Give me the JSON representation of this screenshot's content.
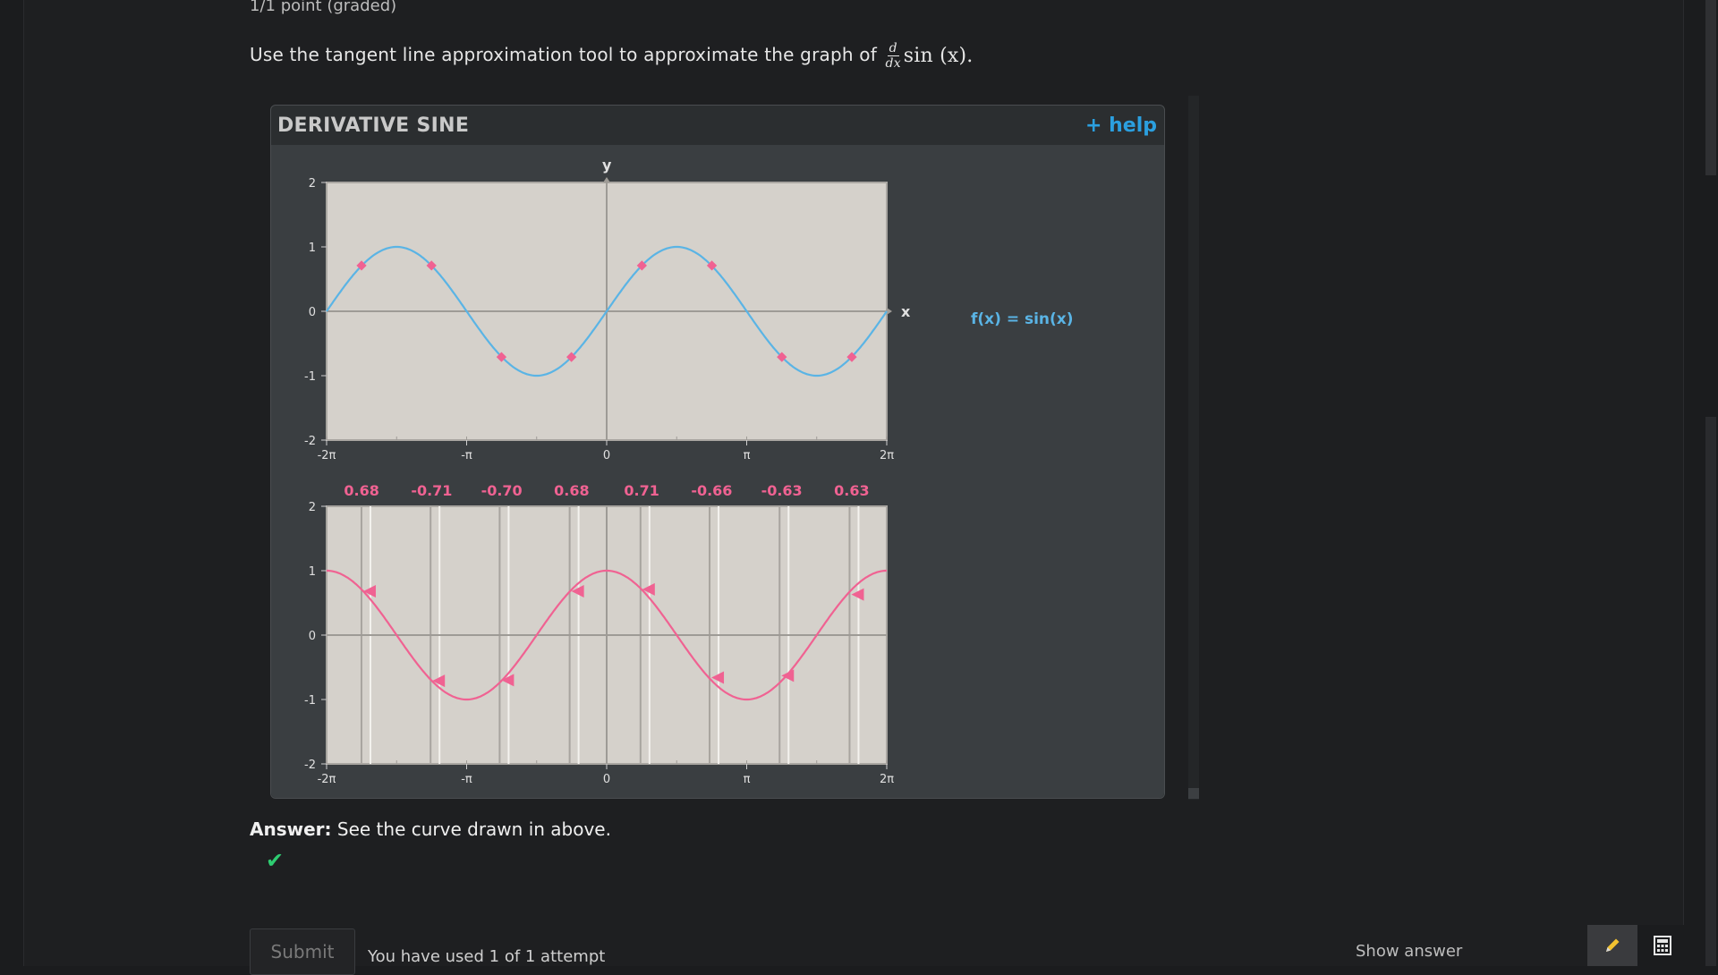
{
  "problem": {
    "points": "1/1 point (graded)",
    "prompt": "Use the tangent line approximation tool to approximate the graph of",
    "math_num": "d",
    "math_den": "dx",
    "math_func": "sin (x)",
    "math_period": "."
  },
  "widget": {
    "title": "DERIVATIVE SINE",
    "help": "+ help",
    "function_label": "f(x) = sin(x)",
    "axis_x": "x",
    "axis_y": "y"
  },
  "chart_data": [
    {
      "type": "line",
      "title": "",
      "xlabel": "x",
      "ylabel": "y",
      "xlim": [
        -6.2832,
        6.2832
      ],
      "ylim": [
        -2,
        2
      ],
      "x_tick_labels": [
        "-2π",
        "-π",
        "0",
        "π",
        "2π"
      ],
      "y_tick_labels": [
        "2",
        "1",
        "0",
        "-1",
        "-2"
      ],
      "grid": false,
      "series": [
        {
          "name": "f(x) = sin(x)",
          "function": "sin(x)",
          "color": "#5ab4e5"
        }
      ],
      "points": {
        "x": [
          -5.5,
          -3.93,
          -2.36,
          -0.79,
          0.79,
          2.36,
          3.93,
          5.5
        ],
        "y": [
          0.71,
          0.71,
          -0.71,
          -0.71,
          0.71,
          0.71,
          -0.71,
          -0.71
        ],
        "color": "#f06292"
      }
    },
    {
      "type": "line",
      "title": "",
      "xlim": [
        -6.2832,
        6.2832
      ],
      "ylim": [
        -2,
        2
      ],
      "x_tick_labels": [
        "-2π",
        "-π",
        "0",
        "π",
        "2π"
      ],
      "y_tick_labels": [
        "2",
        "1",
        "0",
        "-1",
        "-2"
      ],
      "grid": false,
      "series": [
        {
          "function": "cos(x)",
          "color": "#f06292"
        }
      ],
      "slope_labels": [
        "0.68",
        "-0.71",
        "-0.70",
        "0.68",
        "0.71",
        "-0.66",
        "-0.63",
        "0.63"
      ],
      "points": {
        "x": [
          -5.3,
          -3.75,
          -2.2,
          -0.63,
          0.96,
          2.51,
          4.08,
          5.65
        ],
        "y": [
          0.68,
          -0.71,
          -0.7,
          0.68,
          0.71,
          -0.66,
          -0.63,
          0.63
        ],
        "color": "#f06292"
      }
    }
  ],
  "answer": {
    "label": "Answer:",
    "text": "See the curve drawn in above."
  },
  "footer": {
    "submit": "Submit",
    "attempts": "You have used 1 of 1 attempt",
    "show_answer": "Show answer"
  },
  "icons": {
    "check": "check-icon",
    "pencil": "pencil-icon",
    "calculator": "calculator-icon"
  },
  "colors": {
    "sine": "#5ab4e5",
    "derivative": "#f06292",
    "help": "#2b9fdf",
    "check": "#2ecc71"
  }
}
